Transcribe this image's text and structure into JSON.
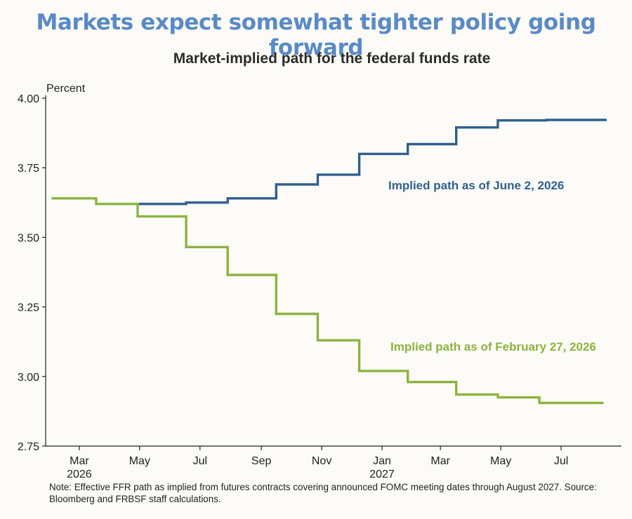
{
  "headline": "Markets expect somewhat tighter policy going forward",
  "chart_data": {
    "type": "line",
    "step": true,
    "title": "Market-implied path for the federal funds rate",
    "ylabel": "Percent",
    "ylim": [
      2.75,
      4.0
    ],
    "yticks": [
      "4.00",
      "3.75",
      "3.50",
      "3.25",
      "3.00",
      "2.75"
    ],
    "xlim": [
      "2026-01-26",
      "2027-08-31"
    ],
    "xticks": [
      {
        "date": "2026-03-01",
        "label": "Mar",
        "year": "2026"
      },
      {
        "date": "2026-05-01",
        "label": "May",
        "year": ""
      },
      {
        "date": "2026-07-01",
        "label": "Jul",
        "year": ""
      },
      {
        "date": "2026-09-01",
        "label": "Sep",
        "year": ""
      },
      {
        "date": "2026-11-01",
        "label": "Nov",
        "year": ""
      },
      {
        "date": "2027-01-01",
        "label": "Jan",
        "year": "2027"
      },
      {
        "date": "2027-03-01",
        "label": "Mar",
        "year": ""
      },
      {
        "date": "2027-05-01",
        "label": "May",
        "year": ""
      },
      {
        "date": "2027-07-01",
        "label": "Jul",
        "year": ""
      }
    ],
    "grid": false,
    "legend": "inline labels",
    "series": [
      {
        "name": "Implied path as of June 2, 2026",
        "color": "#2f5f8f",
        "points": [
          [
            "2026-04-30",
            3.62
          ],
          [
            "2026-06-17",
            3.625
          ],
          [
            "2026-07-29",
            3.64
          ],
          [
            "2026-09-16",
            3.69
          ],
          [
            "2026-10-28",
            3.725
          ],
          [
            "2026-12-09",
            3.8
          ],
          [
            "2027-01-27",
            3.835
          ],
          [
            "2027-03-17",
            3.895
          ],
          [
            "2027-04-28",
            3.92
          ],
          [
            "2027-06-16",
            3.922
          ],
          [
            "2027-07-28",
            3.922
          ],
          [
            "2027-08-16",
            3.922
          ]
        ]
      },
      {
        "name": "Implied path as of February 27, 2026",
        "color": "#8db33f",
        "points": [
          [
            "2026-02-01",
            3.64
          ],
          [
            "2026-03-18",
            3.62
          ],
          [
            "2026-04-29",
            3.575
          ],
          [
            "2026-06-17",
            3.465
          ],
          [
            "2026-07-29",
            3.365
          ],
          [
            "2026-09-16",
            3.225
          ],
          [
            "2026-10-28",
            3.13
          ],
          [
            "2026-12-09",
            3.02
          ],
          [
            "2027-01-27",
            2.98
          ],
          [
            "2027-03-17",
            2.935
          ],
          [
            "2027-04-28",
            2.925
          ],
          [
            "2027-06-09",
            2.905
          ],
          [
            "2027-08-13",
            2.905
          ]
        ]
      }
    ]
  },
  "note": "Note: Effective FFR path as implied from futures contracts covering announced FOMC meeting dates through August 2027. Source: Bloomberg and FRBSF staff calculations."
}
